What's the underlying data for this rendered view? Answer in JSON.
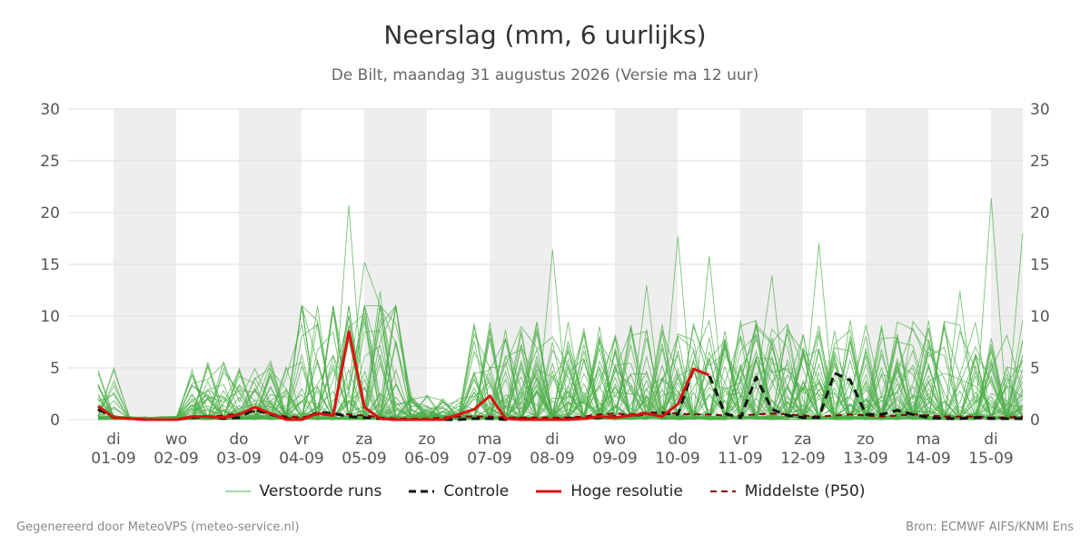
{
  "title": "Neerslag (mm, 6 uurlijks)",
  "subtitle": "De Bilt, maandag 31 augustus 2026 (Versie ma 12 uur)",
  "footer": {
    "left": "Gegenereerd door MeteoVPS (meteo-service.nl)",
    "right": "Bron: ECMWF AIFS/KNMI Ens"
  },
  "legend": [
    {
      "label": "Verstoorde runs",
      "color": "#4daf4a",
      "style": "thin"
    },
    {
      "label": "Controle",
      "color": "#111111",
      "style": "dashed"
    },
    {
      "label": "Hoge resolutie",
      "color": "#dd1111",
      "style": "solid"
    },
    {
      "label": "Middelste (P50)",
      "color": "#8b0000",
      "style": "dashed"
    }
  ],
  "chart_data": {
    "type": "line",
    "x_unit": "6-hourly steps from 31-08 18:00 to 15-09 06:00",
    "ylim": [
      0,
      30
    ],
    "yticks": [
      0,
      5,
      10,
      15,
      20,
      25,
      30
    ],
    "grid": true,
    "legend_position": "bottom",
    "days": [
      {
        "weekday": "di",
        "date": "01-09",
        "shaded": true
      },
      {
        "weekday": "wo",
        "date": "02-09",
        "shaded": false
      },
      {
        "weekday": "do",
        "date": "03-09",
        "shaded": true
      },
      {
        "weekday": "vr",
        "date": "04-09",
        "shaded": false
      },
      {
        "weekday": "za",
        "date": "05-09",
        "shaded": true
      },
      {
        "weekday": "zo",
        "date": "06-09",
        "shaded": false
      },
      {
        "weekday": "ma",
        "date": "07-09",
        "shaded": true
      },
      {
        "weekday": "di",
        "date": "08-09",
        "shaded": false
      },
      {
        "weekday": "wo",
        "date": "09-09",
        "shaded": true
      },
      {
        "weekday": "do",
        "date": "10-09",
        "shaded": false
      },
      {
        "weekday": "vr",
        "date": "11-09",
        "shaded": true
      },
      {
        "weekday": "za",
        "date": "12-09",
        "shaded": false
      },
      {
        "weekday": "zo",
        "date": "13-09",
        "shaded": true
      },
      {
        "weekday": "ma",
        "date": "14-09",
        "shaded": false
      },
      {
        "weekday": "di",
        "date": "15-09",
        "shaded": true
      }
    ],
    "series": [
      {
        "name": "Hoge resolutie",
        "color": "#dd1111",
        "values": [
          1.3,
          0.2,
          0.1,
          0.0,
          0.0,
          0.0,
          0.3,
          0.3,
          0.2,
          0.5,
          1.2,
          0.6,
          0.0,
          0.0,
          0.6,
          0.4,
          8.5,
          1.2,
          0.1,
          0.0,
          0.0,
          0.0,
          0.0,
          0.5,
          1.0,
          2.3,
          0.1,
          0.0,
          0.0,
          0.0,
          0.0,
          0.1,
          0.3,
          0.2,
          0.4,
          0.6,
          0.3,
          1.5,
          4.9,
          4.3
        ]
      },
      {
        "name": "Controle",
        "color": "#111111",
        "values": [
          1.0,
          0.2,
          0.1,
          0.0,
          0.0,
          0.0,
          0.2,
          0.3,
          0.1,
          0.2,
          1.0,
          0.5,
          0.1,
          0.0,
          0.7,
          0.6,
          0.3,
          0.2,
          0.1,
          0.0,
          0.0,
          0.0,
          0.0,
          0.0,
          0.1,
          0.1,
          0.0,
          0.1,
          0.0,
          0.0,
          0.1,
          0.1,
          0.2,
          0.3,
          0.4,
          0.5,
          0.6,
          0.5,
          4.9,
          4.3,
          0.6,
          0.2,
          4.1,
          1.0,
          0.4,
          0.2,
          0.2,
          4.5,
          3.8,
          0.5,
          0.5,
          0.9,
          0.5,
          0.2,
          0.1,
          0.1,
          0.2,
          0.1,
          0.1,
          0.1
        ]
      },
      {
        "name": "Middelste (P50)",
        "color": "#8b0000",
        "values": [
          0.9,
          0.3,
          0.1,
          0.0,
          0.0,
          0.0,
          0.2,
          0.3,
          0.4,
          0.6,
          0.8,
          0.6,
          0.3,
          0.2,
          0.5,
          0.6,
          0.5,
          0.4,
          0.2,
          0.1,
          0.1,
          0.1,
          0.2,
          0.3,
          0.3,
          0.3,
          0.2,
          0.2,
          0.2,
          0.2,
          0.2,
          0.3,
          0.5,
          0.6,
          0.5,
          0.7,
          0.7,
          0.6,
          0.5,
          0.5,
          0.4,
          0.4,
          0.5,
          0.6,
          0.5,
          0.4,
          0.3,
          0.4,
          0.5,
          0.4,
          0.3,
          0.4,
          0.5,
          0.4,
          0.3,
          0.3,
          0.3,
          0.2,
          0.2,
          0.3
        ]
      }
    ],
    "ensemble_color": "#4daf4a",
    "ensemble_peaks": [
      {
        "i": 16,
        "v": 20.7
      },
      {
        "i": 17,
        "v": 15.2
      },
      {
        "i": 18,
        "v": 12.4
      },
      {
        "i": 29,
        "v": 16.4
      },
      {
        "i": 35,
        "v": 13.0
      },
      {
        "i": 37,
        "v": 17.7
      },
      {
        "i": 39,
        "v": 15.8
      },
      {
        "i": 43,
        "v": 13.9
      },
      {
        "i": 46,
        "v": 17.0
      },
      {
        "i": 55,
        "v": 12.4
      },
      {
        "i": 57,
        "v": 21.4
      },
      {
        "i": 59,
        "v": 18.0
      }
    ]
  }
}
